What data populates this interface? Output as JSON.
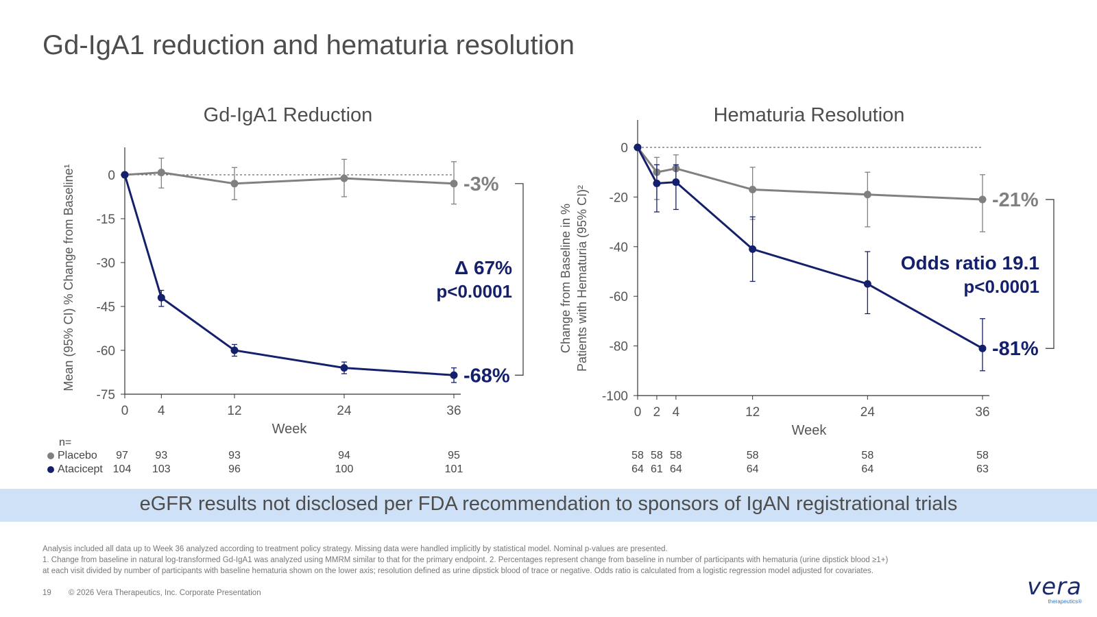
{
  "page": {
    "title": "Gd-IgA1 reduction and hematuria resolution",
    "banner": "eGFR results not disclosed per FDA recommendation to sponsors of IgAN registrational trials",
    "footnote_1": "Analysis included all data up to Week 36 analyzed according to treatment policy strategy. Missing data were handled implicitly by statistical model. Nominal p-values are presented.",
    "footnote_2": "1. Change from baseline in natural log-transformed Gd-IgA1 was analyzed using MMRM similar to that for the primary endpoint. 2. Percentages represent change from baseline in number of participants with hematuria (urine dipstick blood ≥1+)",
    "footnote_3": "at each visit divided by number of participants with baseline hematuria shown on the lower axis; resolution defined as urine dipstick blood of trace or negative. Odds ratio is calculated from a logistic regression model adjusted for covariates.",
    "page_number": "19",
    "copyright": "© 2026 Vera Therapeutics, Inc. Corporate Presentation",
    "logo_text": "vera",
    "logo_subtext": "therapeutics®",
    "colors": {
      "placebo": "#808080",
      "atacicept": "#14206b",
      "banner": "#cfe1f6"
    }
  },
  "chart_data": [
    {
      "type": "line",
      "title": "Gd-IgA1 Reduction",
      "ylabel": "Mean (95% CI) % Change from Baseline¹",
      "xlabel": "Week",
      "x": [
        0,
        4,
        12,
        24,
        36
      ],
      "x_ticks": [
        "0",
        "4",
        "12",
        "24",
        "36"
      ],
      "ylim": [
        -75,
        0
      ],
      "y_ticks": [
        "0",
        "-15",
        "-30",
        "-45",
        "-60",
        "-75"
      ],
      "y_tick_values": [
        0,
        -15,
        -30,
        -45,
        -60,
        -75
      ],
      "series": [
        {
          "name": "Placebo",
          "values": [
            0,
            0.8,
            -3,
            -1.2,
            -3
          ],
          "ci_low": [
            0,
            -4.5,
            -8.5,
            -7.5,
            -10
          ],
          "ci_high": [
            0,
            5.7,
            2.5,
            5.3,
            4.5
          ],
          "end_label": "-3%"
        },
        {
          "name": "Atacicept",
          "values": [
            0,
            -42,
            -60,
            -66,
            -68.5
          ],
          "ci_low": [
            0,
            -45,
            -62,
            -68,
            -71
          ],
          "ci_high": [
            0,
            -39.5,
            -58,
            -64,
            -66
          ],
          "end_label": "-68%"
        }
      ],
      "annotation": [
        "Δ 67%",
        "p<0.0001"
      ],
      "n_header": "n=",
      "n_rows": [
        {
          "label": "Placebo",
          "values": [
            "97",
            "93",
            "93",
            "94",
            "95"
          ]
        },
        {
          "label": "Atacicept",
          "values": [
            "104",
            "103",
            "96",
            "100",
            "101"
          ]
        }
      ],
      "grid": false
    },
    {
      "type": "line",
      "title": "Hematuria Resolution",
      "ylabel_line1": "Change from Baseline in %",
      "ylabel_line2": "Patients with Hematuria (95% CI)²",
      "xlabel": "Week",
      "x": [
        0,
        2,
        4,
        12,
        24,
        36
      ],
      "x_ticks": [
        "0",
        "2",
        "4",
        "12",
        "24",
        "36"
      ],
      "ylim": [
        -100,
        0
      ],
      "y_ticks": [
        "0",
        "-20",
        "-40",
        "-60",
        "-80",
        "-100"
      ],
      "y_tick_values": [
        0,
        -20,
        -40,
        -60,
        -80,
        -100
      ],
      "series": [
        {
          "name": "Placebo",
          "values": [
            0,
            -10,
            -8.5,
            -17,
            -19,
            -21
          ],
          "ci_low": [
            0,
            -21,
            -15,
            -29,
            -32,
            -34
          ],
          "ci_high": [
            0,
            -4,
            -3,
            -8,
            -10,
            -11
          ],
          "end_label": "-21%"
        },
        {
          "name": "Atacicept",
          "values": [
            0,
            -14.5,
            -14,
            -41,
            -55,
            -81
          ],
          "ci_low": [
            0,
            -26,
            -25,
            -54,
            -67,
            -90
          ],
          "ci_high": [
            0,
            -7,
            -7,
            -28,
            -42,
            -69
          ],
          "end_label": "-81%"
        }
      ],
      "annotation": [
        "Odds ratio 19.1",
        "p<0.0001"
      ],
      "n_rows": [
        {
          "label": "Placebo",
          "values": [
            "58",
            "58",
            "58",
            "58",
            "58",
            "58"
          ]
        },
        {
          "label": "Atacicept",
          "values": [
            "64",
            "61",
            "64",
            "64",
            "64",
            "63"
          ]
        }
      ],
      "grid": false
    }
  ]
}
